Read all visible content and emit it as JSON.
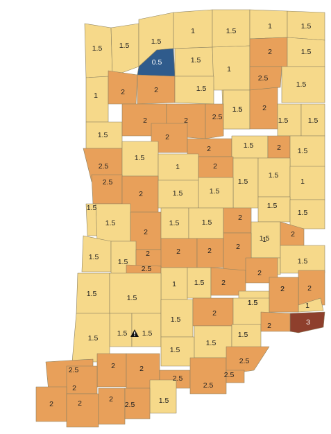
{
  "legend_colors": {
    "0.5": "#2f5b8c",
    "1": "#f6d98a",
    "1.5": "#f6d98a",
    "2": "#e8a05a",
    "2.5": "#e8a05a",
    "3": "#8e3f2c"
  },
  "counties": [
    {
      "id": "lake",
      "value": "1.5"
    },
    {
      "id": "porter",
      "value": "1.5"
    },
    {
      "id": "laporte",
      "value": "1.5"
    },
    {
      "id": "stjoseph",
      "value": "1"
    },
    {
      "id": "elkhart",
      "value": "1.5"
    },
    {
      "id": "lagrange",
      "value": "1"
    },
    {
      "id": "steuben",
      "value": "1.5"
    },
    {
      "id": "starke",
      "value": "0.5"
    },
    {
      "id": "marshall",
      "value": "1.5"
    },
    {
      "id": "kosciusko",
      "value": "1"
    },
    {
      "id": "noble",
      "value": "2"
    },
    {
      "id": "dekalb",
      "value": "1.5"
    },
    {
      "id": "allen",
      "value": "2.5"
    },
    {
      "id": "newton",
      "value": "1"
    },
    {
      "id": "jasper",
      "value": "2"
    },
    {
      "id": "pulaski",
      "value": "2"
    },
    {
      "id": "fulton",
      "value": "1.5"
    },
    {
      "id": "whitley",
      "value": "1.5"
    },
    {
      "id": "allen2",
      "value": "1.5"
    },
    {
      "id": "benton",
      "value": "1.5"
    },
    {
      "id": "white",
      "value": "2"
    },
    {
      "id": "cass",
      "value": "2"
    },
    {
      "id": "miami",
      "value": "2.5"
    },
    {
      "id": "wabash",
      "value": "1.5"
    },
    {
      "id": "huntington",
      "value": "2"
    },
    {
      "id": "wells",
      "value": "1.5"
    },
    {
      "id": "adams",
      "value": "1.5"
    },
    {
      "id": "carroll",
      "value": "2"
    },
    {
      "id": "howard",
      "value": "2"
    },
    {
      "id": "grant",
      "value": "1.5"
    },
    {
      "id": "blackford",
      "value": "2"
    },
    {
      "id": "jay",
      "value": "1.5"
    },
    {
      "id": "warren",
      "value": "2.5"
    },
    {
      "id": "tippecanoe",
      "value": "1.5"
    },
    {
      "id": "clinton",
      "value": "1"
    },
    {
      "id": "tipton",
      "value": "2"
    },
    {
      "id": "madison",
      "value": "1.5"
    },
    {
      "id": "delaware",
      "value": "1.5"
    },
    {
      "id": "randolph",
      "value": "1"
    },
    {
      "id": "fountain",
      "value": "2.5"
    },
    {
      "id": "montgomery",
      "value": "2"
    },
    {
      "id": "boone",
      "value": "1.5"
    },
    {
      "id": "hamilton",
      "value": "1.5"
    },
    {
      "id": "henry",
      "value": "1.5"
    },
    {
      "id": "wayne",
      "value": "1.5"
    },
    {
      "id": "vermillion",
      "value": "1.5"
    },
    {
      "id": "parke",
      "value": "1.5"
    },
    {
      "id": "putnam",
      "value": "2"
    },
    {
      "id": "hendricks",
      "value": "1.5"
    },
    {
      "id": "marion",
      "value": "1.5"
    },
    {
      "id": "hancock",
      "value": "2"
    },
    {
      "id": "fayette",
      "value": "1.5"
    },
    {
      "id": "union",
      "value": "2"
    },
    {
      "id": "vigo",
      "value": "1.5"
    },
    {
      "id": "clay",
      "value": "1.5"
    },
    {
      "id": "owen",
      "value": "2"
    },
    {
      "id": "morgan",
      "value": "2"
    },
    {
      "id": "johnson",
      "value": "2"
    },
    {
      "id": "shelby",
      "value": "2"
    },
    {
      "id": "rush",
      "value": "1"
    },
    {
      "id": "franklin",
      "value": "1.5"
    },
    {
      "id": "sullivan",
      "value": "1.5"
    },
    {
      "id": "greene",
      "value": "2.5"
    },
    {
      "id": "monroe",
      "value": "1"
    },
    {
      "id": "brown",
      "value": "1.5"
    },
    {
      "id": "bartholomew",
      "value": "2"
    },
    {
      "id": "decatur",
      "value": "2"
    },
    {
      "id": "dearborn",
      "value": "2"
    },
    {
      "id": "knox",
      "value": "1.5"
    },
    {
      "id": "daviess",
      "value": "1.5"
    },
    {
      "id": "martin",
      "value": "1.5"
    },
    {
      "id": "lawrence",
      "value": "1.5"
    },
    {
      "id": "jackson",
      "value": "2"
    },
    {
      "id": "jennings",
      "value": "1.5"
    },
    {
      "id": "ripley",
      "value": "2"
    },
    {
      "id": "ohio",
      "value": "1"
    },
    {
      "id": "switzerland",
      "value": "3"
    },
    {
      "id": "gibson",
      "value": "1.5"
    },
    {
      "id": "pike",
      "value": "1.5"
    },
    {
      "id": "dubois",
      "value": "1.5"
    },
    {
      "id": "orange",
      "value": "1.5"
    },
    {
      "id": "washington",
      "value": "1.5"
    },
    {
      "id": "scott",
      "value": "2"
    },
    {
      "id": "jefferson",
      "value": "2"
    },
    {
      "id": "posey",
      "value": "2.5"
    },
    {
      "id": "vanderburgh",
      "value": "2"
    },
    {
      "id": "warrick",
      "value": "2"
    },
    {
      "id": "spencer",
      "value": "2.5"
    },
    {
      "id": "crawford",
      "value": "2.5"
    },
    {
      "id": "harrison",
      "value": "2.5"
    },
    {
      "id": "clark",
      "value": "2.5"
    },
    {
      "id": "floyd",
      "value": "2"
    },
    {
      "id": "perry",
      "value": "1.5"
    },
    {
      "id": "posey2",
      "value": "2"
    },
    {
      "id": "vand2",
      "value": "2"
    },
    {
      "id": "warr2",
      "value": "2"
    },
    {
      "id": "spen2",
      "value": "2.5"
    }
  ]
}
